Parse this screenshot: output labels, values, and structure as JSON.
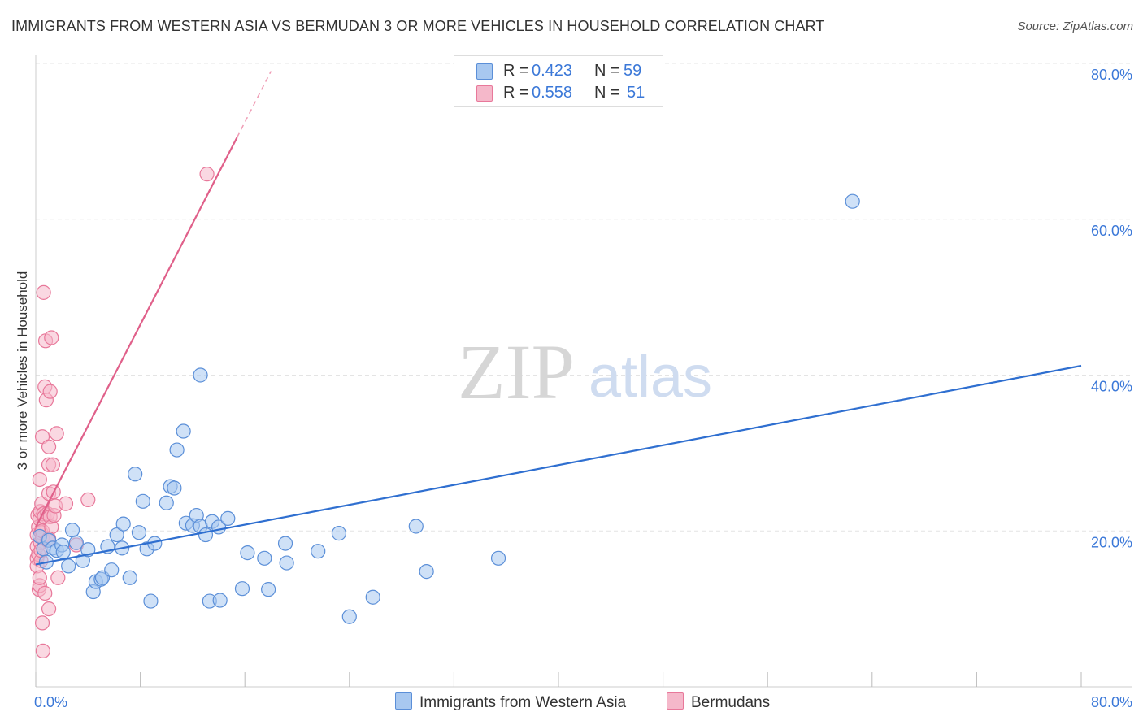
{
  "title": "IMMIGRANTS FROM WESTERN ASIA VS BERMUDAN 3 OR MORE VEHICLES IN HOUSEHOLD CORRELATION CHART",
  "source": "Source: ZipAtlas.com",
  "watermark": {
    "zip": "ZIP",
    "atlas": "atlas"
  },
  "stats": {
    "r_label": "R =",
    "n_label": "N =",
    "series1": {
      "r": "0.423",
      "n": "59"
    },
    "series2": {
      "r": "0.558",
      "n": "51"
    }
  },
  "legend": {
    "series1": "Immigrants from Western Asia",
    "series2": "Bermudans"
  },
  "colors": {
    "series1_fill": "#a8c8f0",
    "series1_stroke": "#5b8fd8",
    "series1_line": "#2f6fd0",
    "series2_fill": "#f5b8ca",
    "series2_stroke": "#e8789a",
    "series2_line": "#e0608a",
    "tick_label": "#3b78d8"
  },
  "chart_data": {
    "type": "scatter",
    "title": "IMMIGRANTS FROM WESTERN ASIA VS BERMUDAN 3 OR MORE VEHICLES IN HOUSEHOLD CORRELATION CHART",
    "xlabel": "",
    "ylabel": "3 or more Vehicles in Household",
    "xlim": [
      0,
      80
    ],
    "ylim": [
      0,
      80
    ],
    "x_tick_labels": [
      "0.0%",
      "80.0%"
    ],
    "y_ticks": [
      20,
      40,
      60,
      80
    ],
    "y_tick_labels": [
      "20.0%",
      "40.0%",
      "60.0%",
      "80.0%"
    ],
    "grid": true,
    "series": [
      {
        "name": "Immigrants from Western Asia",
        "points": [
          [
            0.3,
            19.3
          ],
          [
            0.6,
            17.7
          ],
          [
            0.8,
            16.0
          ],
          [
            1.0,
            18.8
          ],
          [
            1.3,
            17.8
          ],
          [
            1.6,
            17.5
          ],
          [
            2.0,
            18.2
          ],
          [
            2.1,
            17.3
          ],
          [
            2.5,
            15.5
          ],
          [
            2.8,
            20.1
          ],
          [
            3.1,
            18.5
          ],
          [
            3.6,
            16.2
          ],
          [
            4.0,
            17.6
          ],
          [
            4.4,
            12.2
          ],
          [
            4.6,
            13.5
          ],
          [
            5.0,
            13.8
          ],
          [
            5.1,
            14.0
          ],
          [
            5.5,
            18.0
          ],
          [
            5.8,
            15.0
          ],
          [
            6.2,
            19.5
          ],
          [
            6.6,
            17.8
          ],
          [
            6.7,
            20.9
          ],
          [
            7.2,
            14.0
          ],
          [
            7.6,
            27.3
          ],
          [
            7.9,
            19.8
          ],
          [
            8.2,
            23.8
          ],
          [
            8.5,
            17.7
          ],
          [
            8.8,
            11.0
          ],
          [
            9.1,
            18.4
          ],
          [
            10.0,
            23.6
          ],
          [
            10.3,
            25.7
          ],
          [
            10.6,
            25.5
          ],
          [
            10.8,
            30.4
          ],
          [
            11.3,
            32.8
          ],
          [
            11.5,
            21.0
          ],
          [
            12.0,
            20.7
          ],
          [
            12.3,
            22.0
          ],
          [
            12.6,
            20.6
          ],
          [
            12.6,
            40.0
          ],
          [
            13.0,
            19.5
          ],
          [
            13.3,
            11.0
          ],
          [
            13.5,
            21.2
          ],
          [
            14.1,
            11.1
          ],
          [
            14.0,
            20.5
          ],
          [
            14.7,
            21.6
          ],
          [
            15.8,
            12.6
          ],
          [
            16.2,
            17.2
          ],
          [
            17.5,
            16.5
          ],
          [
            17.8,
            12.5
          ],
          [
            19.1,
            18.4
          ],
          [
            19.2,
            15.9
          ],
          [
            21.6,
            17.4
          ],
          [
            23.2,
            19.7
          ],
          [
            24.0,
            9.0
          ],
          [
            25.8,
            11.5
          ],
          [
            29.1,
            20.6
          ],
          [
            29.9,
            14.8
          ],
          [
            35.4,
            16.5
          ],
          [
            62.5,
            62.3
          ]
        ],
        "trend": {
          "x": [
            0,
            80
          ],
          "y": [
            15.7,
            41.2
          ]
        }
      },
      {
        "name": "Bermudans",
        "points": [
          [
            0.1,
            18.0
          ],
          [
            0.1,
            16.5
          ],
          [
            0.1,
            15.5
          ],
          [
            0.1,
            19.5
          ],
          [
            0.15,
            22.0
          ],
          [
            0.2,
            17.0
          ],
          [
            0.2,
            20.5
          ],
          [
            0.25,
            12.5
          ],
          [
            0.3,
            13.0
          ],
          [
            0.3,
            14.0
          ],
          [
            0.3,
            21.5
          ],
          [
            0.3,
            26.6
          ],
          [
            0.35,
            18.5
          ],
          [
            0.35,
            22.5
          ],
          [
            0.4,
            16.2
          ],
          [
            0.4,
            17.5
          ],
          [
            0.4,
            19.8
          ],
          [
            0.45,
            23.5
          ],
          [
            0.5,
            19.2
          ],
          [
            0.5,
            20.0
          ],
          [
            0.5,
            32.1
          ],
          [
            0.5,
            8.2
          ],
          [
            0.55,
            4.6
          ],
          [
            0.6,
            22.2
          ],
          [
            0.6,
            50.6
          ],
          [
            0.65,
            21.8
          ],
          [
            0.7,
            12.0
          ],
          [
            0.7,
            38.5
          ],
          [
            0.75,
            44.4
          ],
          [
            0.8,
            36.8
          ],
          [
            0.9,
            18.8
          ],
          [
            0.9,
            22.2
          ],
          [
            1.0,
            30.8
          ],
          [
            1.0,
            24.8
          ],
          [
            1.0,
            28.5
          ],
          [
            1.0,
            10.0
          ],
          [
            1.1,
            37.9
          ],
          [
            1.1,
            21.8
          ],
          [
            1.2,
            20.5
          ],
          [
            1.2,
            44.8
          ],
          [
            1.3,
            28.5
          ],
          [
            1.35,
            25.0
          ],
          [
            1.4,
            22.0
          ],
          [
            1.5,
            23.2
          ],
          [
            1.6,
            32.5
          ],
          [
            1.7,
            14.0
          ],
          [
            2.3,
            23.5
          ],
          [
            3.1,
            18.2
          ],
          [
            4.0,
            24.0
          ],
          [
            13.1,
            65.8
          ],
          [
            1.0,
            19.0
          ]
        ],
        "trend": {
          "x": [
            0,
            15.4
          ],
          "y": [
            20.5,
            70.5
          ]
        },
        "trend_dashed": {
          "x": [
            15.4,
            18.0
          ],
          "y": [
            70.5,
            79.0
          ]
        }
      }
    ]
  }
}
